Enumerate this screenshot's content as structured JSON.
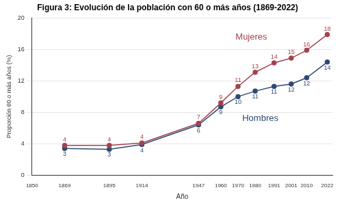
{
  "chart_data": {
    "type": "line",
    "title": "Figura 3: Evolución de la población con 60 o más años (1869-2022)",
    "x_label": "Año",
    "y_label": "Proporción 60 o más años (%)",
    "x": [
      1869,
      1895,
      1914,
      1947,
      1960,
      1970,
      1980,
      1991,
      2001,
      2010,
      2022
    ],
    "series": [
      {
        "name": "Mujeres",
        "color": "#a3434e",
        "marker": "circle",
        "values": [
          3.8,
          3.8,
          4.1,
          6.6,
          9.2,
          11.3,
          13.1,
          14.3,
          14.9,
          15.9,
          17.9
        ],
        "value_labels": [
          "4",
          "4",
          "4",
          "7",
          "9",
          "11",
          "13",
          "14",
          "15",
          "16",
          "18"
        ]
      },
      {
        "name": "Hombres",
        "color": "#2e4a74",
        "marker": "circle",
        "values": [
          3.4,
          3.3,
          3.9,
          6.4,
          8.7,
          10.0,
          10.7,
          11.3,
          11.6,
          12.4,
          14.4
        ],
        "value_labels": [
          "3",
          "3",
          "4",
          "6",
          "9",
          "10",
          "11",
          "11",
          "12",
          "12",
          "14"
        ]
      }
    ],
    "xlim": [
      1850,
      2025
    ],
    "xticks": [
      1850,
      1869,
      1895,
      1914,
      1947,
      1960,
      1970,
      1980,
      1991,
      2001,
      2010,
      2022
    ],
    "ylim": [
      0,
      20
    ],
    "yticks": [
      0,
      4,
      8,
      12,
      16,
      20
    ],
    "grid": true,
    "data_labels": true
  }
}
